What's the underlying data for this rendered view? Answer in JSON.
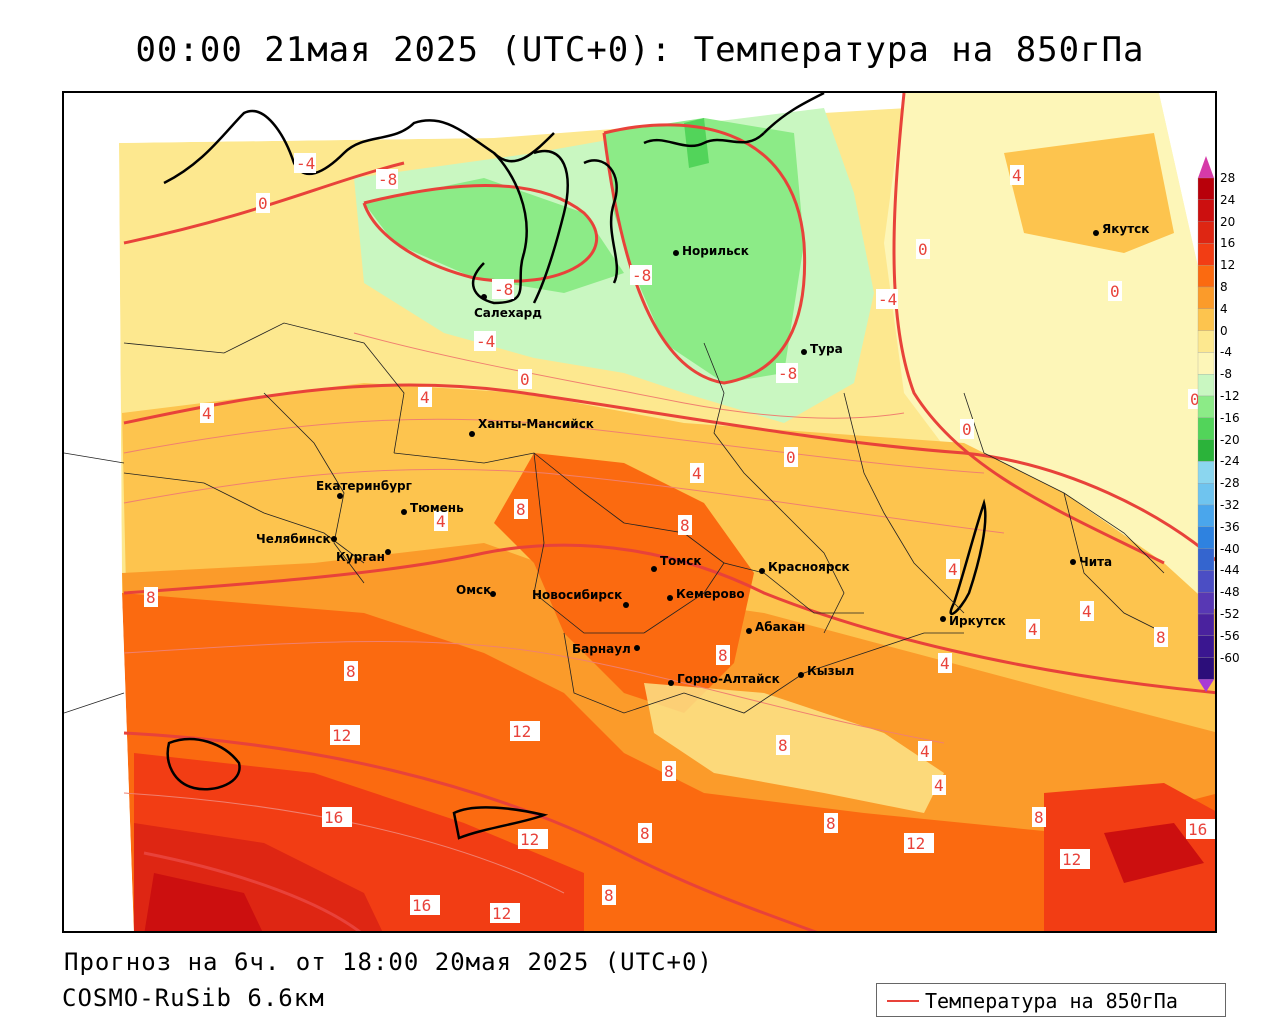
{
  "title": "00:00 21мая 2025 (UTC+0): Температура на 850гПа",
  "footer": {
    "forecast": "Прогноз на 6ч. от 18:00 20мая 2025 (UTC+0)",
    "model": "COSMO-RuSib 6.6км"
  },
  "legend": {
    "label": "Температура на 850гПа",
    "line_color": "#e8423a"
  },
  "colorbar": {
    "ticks": [
      "28",
      "24",
      "20",
      "16",
      "12",
      "8",
      "4",
      "0",
      "-4",
      "-8",
      "-12",
      "-16",
      "-20",
      "-24",
      "-28",
      "-32",
      "-36",
      "-40",
      "-44",
      "-48",
      "-52",
      "-56",
      "-60"
    ],
    "colors": [
      "#b8000a",
      "#cc0f0f",
      "#de2613",
      "#f23d14",
      "#fb6a10",
      "#fb9b2a",
      "#fdc44e",
      "#fde88f",
      "#fdf6b8",
      "#c9f7c1",
      "#8ceb87",
      "#52d45a",
      "#2bb33a",
      "#8bd6ef",
      "#6fc4ef",
      "#4aa6ec",
      "#2e82e0",
      "#3465cf",
      "#4b4ec4",
      "#5838b4",
      "#4a229e",
      "#3a1690",
      "#2c0e7a"
    ]
  },
  "cities": [
    {
      "name": "Якутск"
    },
    {
      "name": "Норильск"
    },
    {
      "name": "Салехард"
    },
    {
      "name": "Тура"
    },
    {
      "name": "Ханты-Мансийск"
    },
    {
      "name": "Екатеринбург"
    },
    {
      "name": "Тюмень"
    },
    {
      "name": "Челябинск"
    },
    {
      "name": "Курган"
    },
    {
      "name": "Омск"
    },
    {
      "name": "Новосибирск"
    },
    {
      "name": "Томск"
    },
    {
      "name": "Кемерово"
    },
    {
      "name": "Красноярск"
    },
    {
      "name": "Абакан"
    },
    {
      "name": "Барнаул"
    },
    {
      "name": "Горно-Алтайск"
    },
    {
      "name": "Кызыл"
    },
    {
      "name": "Иркутск"
    },
    {
      "name": "Чита"
    }
  ],
  "isolines": [
    "-8",
    "-4",
    "0",
    "4",
    "8",
    "12",
    "16"
  ]
}
